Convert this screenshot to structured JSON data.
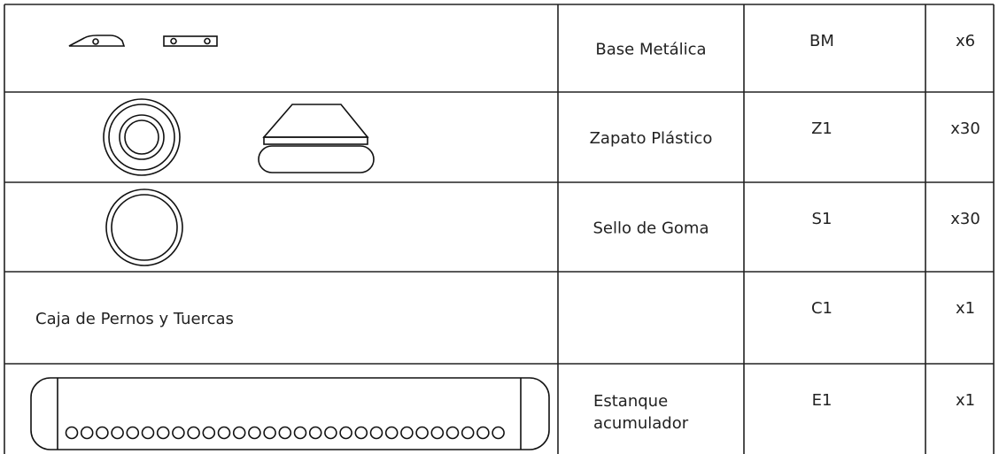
{
  "table": {
    "rows": [
      {
        "description": "Base Metálica",
        "code": "BM",
        "qty": "x6"
      },
      {
        "description": "Zapato Plástico",
        "code": "Z1",
        "qty": "x30"
      },
      {
        "description": "Sello de Goma",
        "code": "S1",
        "qty": "x30"
      },
      {
        "item": "Caja de Pernos y Tuercas",
        "code": "C1",
        "qty": "x1"
      },
      {
        "description": [
          "Estanque",
          "acumulador"
        ],
        "code": "E1",
        "qty": "x1"
      }
    ]
  }
}
